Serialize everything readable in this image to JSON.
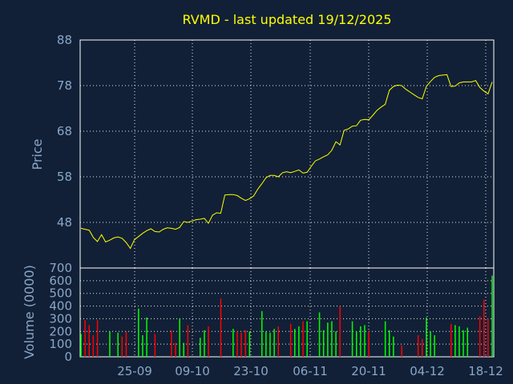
{
  "chart_data": [
    {
      "type": "line",
      "title": "RVMD - last updated 19/12/2025",
      "ylabel": "Price",
      "ylim": [
        38,
        88
      ],
      "y_ticks": [
        "88",
        "78",
        "68",
        "58",
        "48"
      ],
      "grid": true,
      "series": [
        {
          "values": [
            46.7,
            46.5,
            46.3,
            44.7,
            43.8,
            45.3,
            43.7,
            44.1,
            44.6,
            44.8,
            44.5,
            43.6,
            42.3,
            44.2,
            44.9,
            45.6,
            46.2,
            46.6,
            46.0,
            45.9,
            46.5,
            46.8,
            46.7,
            46.5,
            46.9,
            48.2,
            48.0,
            48.3,
            48.6,
            48.7,
            48.9,
            47.8,
            49.6,
            50.1,
            50.0,
            54.0,
            54.1,
            54.1,
            53.9,
            53.3,
            52.8,
            53.2,
            53.8,
            55.3,
            56.5,
            57.8,
            58.3,
            58.3,
            58.0,
            58.9,
            59.1,
            58.9,
            59.2,
            59.5,
            58.8,
            59.0,
            60.3,
            61.5,
            61.9,
            62.4,
            62.8,
            63.8,
            65.7,
            65.0,
            68.2,
            68.5,
            69.1,
            69.2,
            70.4,
            70.6,
            70.5,
            71.5,
            72.6,
            73.3,
            73.9,
            77.0,
            77.8,
            78.1,
            78.0,
            77.2,
            76.6,
            76.0,
            75.4,
            75.1,
            77.8,
            78.9,
            79.8,
            80.2,
            80.3,
            80.4,
            77.8,
            77.9,
            78.6,
            78.8,
            78.8,
            78.8,
            79.1,
            77.6,
            76.8,
            76.2,
            78.8
          ]
        }
      ]
    },
    {
      "type": "bar",
      "ylabel": "Volume (0000)",
      "ylim": [
        0,
        700
      ],
      "y_ticks": [
        "700",
        "600",
        "500",
        "400",
        "300",
        "200",
        "100",
        "0"
      ],
      "x_ticks": [
        "25-09",
        "09-10",
        "23-10",
        "06-11",
        "20-11",
        "04-12",
        "18-12"
      ],
      "grid": true,
      "series": [
        {
          "values": [
            180,
            290,
            250,
            170,
            290,
            0,
            0,
            200,
            0,
            190,
            160,
            200,
            0,
            0,
            380,
            170,
            310,
            0,
            180,
            0,
            0,
            0,
            210,
            110,
            300,
            110,
            250,
            0,
            0,
            150,
            210,
            240,
            0,
            0,
            460,
            0,
            0,
            220,
            200,
            190,
            210,
            200,
            0,
            0,
            360,
            200,
            190,
            220,
            240,
            0,
            0,
            260,
            220,
            240,
            280,
            280,
            0,
            0,
            350,
            210,
            270,
            280,
            200,
            400,
            0,
            0,
            280,
            200,
            240,
            250,
            200,
            0,
            0,
            0,
            280,
            210,
            160,
            0,
            90,
            0,
            0,
            0,
            170,
            140,
            310,
            200,
            170,
            0,
            0,
            0,
            260,
            250,
            240,
            210,
            230,
            0,
            0,
            320,
            450,
            300,
            640
          ],
          "up_colors": [
            "#00ff00",
            "#ff0000"
          ]
        }
      ]
    }
  ],
  "colors": {
    "background": "#112036",
    "up": "#00ff00",
    "down": "#ff0000",
    "price": "#ffff00",
    "axis_text": "#8aa6c8"
  }
}
